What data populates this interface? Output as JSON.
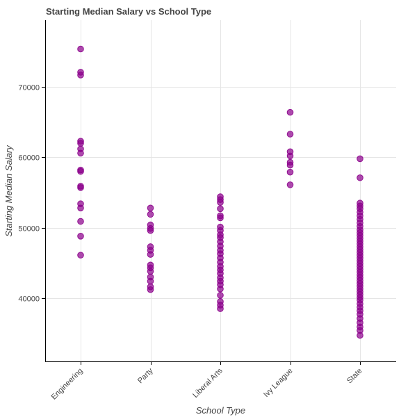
{
  "chart_data": {
    "type": "scatter",
    "title": "Starting Median Salary vs School Type",
    "xlabel": "School Type",
    "ylabel": "Starting Median Salary",
    "categories": [
      "Engineering",
      "Party",
      "Liberal Arts",
      "Ivy League",
      "State"
    ],
    "ylim": [
      31000,
      79500
    ],
    "yticks": [
      40000,
      50000,
      60000,
      70000
    ],
    "grid": true,
    "marker_color": "#8B008B",
    "series": [
      {
        "values": [
          [
            "Engineering",
            75400
          ],
          [
            "Engineering",
            72100
          ],
          [
            "Engineering",
            71700
          ],
          [
            "Engineering",
            62300
          ],
          [
            "Engineering",
            62000
          ],
          [
            "Engineering",
            61200
          ],
          [
            "Engineering",
            60600
          ],
          [
            "Engineering",
            58200
          ],
          [
            "Engineering",
            58000
          ],
          [
            "Engineering",
            55900
          ],
          [
            "Engineering",
            55700
          ],
          [
            "Engineering",
            53400
          ],
          [
            "Engineering",
            52800
          ],
          [
            "Engineering",
            50900
          ],
          [
            "Engineering",
            48800
          ],
          [
            "Engineering",
            46100
          ],
          [
            "Party",
            52800
          ],
          [
            "Party",
            51900
          ],
          [
            "Party",
            50400
          ],
          [
            "Party",
            49900
          ],
          [
            "Party",
            49600
          ],
          [
            "Party",
            47300
          ],
          [
            "Party",
            46800
          ],
          [
            "Party",
            46200
          ],
          [
            "Party",
            44700
          ],
          [
            "Party",
            44300
          ],
          [
            "Party",
            43800
          ],
          [
            "Party",
            43000
          ],
          [
            "Party",
            42400
          ],
          [
            "Party",
            41600
          ],
          [
            "Party",
            41200
          ],
          [
            "Liberal Arts",
            54400
          ],
          [
            "Liberal Arts",
            54000
          ],
          [
            "Liberal Arts",
            53600
          ],
          [
            "Liberal Arts",
            52700
          ],
          [
            "Liberal Arts",
            51700
          ],
          [
            "Liberal Arts",
            51400
          ],
          [
            "Liberal Arts",
            50100
          ],
          [
            "Liberal Arts",
            49600
          ],
          [
            "Liberal Arts",
            49000
          ],
          [
            "Liberal Arts",
            48600
          ],
          [
            "Liberal Arts",
            48000
          ],
          [
            "Liberal Arts",
            47400
          ],
          [
            "Liberal Arts",
            46800
          ],
          [
            "Liberal Arts",
            46300
          ],
          [
            "Liberal Arts",
            45700
          ],
          [
            "Liberal Arts",
            45100
          ],
          [
            "Liberal Arts",
            44500
          ],
          [
            "Liberal Arts",
            44000
          ],
          [
            "Liberal Arts",
            43500
          ],
          [
            "Liberal Arts",
            42900
          ],
          [
            "Liberal Arts",
            42400
          ],
          [
            "Liberal Arts",
            41900
          ],
          [
            "Liberal Arts",
            41300
          ],
          [
            "Liberal Arts",
            40400
          ],
          [
            "Liberal Arts",
            39500
          ],
          [
            "Liberal Arts",
            39000
          ],
          [
            "Liberal Arts",
            38500
          ],
          [
            "Ivy League",
            66400
          ],
          [
            "Ivy League",
            63300
          ],
          [
            "Ivy League",
            60800
          ],
          [
            "Ivy League",
            60200
          ],
          [
            "Ivy League",
            59300
          ],
          [
            "Ivy League",
            58900
          ],
          [
            "Ivy League",
            57900
          ],
          [
            "Ivy League",
            56100
          ],
          [
            "State",
            59800
          ],
          [
            "State",
            57100
          ],
          [
            "State",
            53500
          ],
          [
            "State",
            53100
          ],
          [
            "State",
            52700
          ],
          [
            "State",
            52200
          ],
          [
            "State",
            51700
          ],
          [
            "State",
            51200
          ],
          [
            "State",
            50700
          ],
          [
            "State",
            50200
          ],
          [
            "State",
            49700
          ],
          [
            "State",
            49300
          ],
          [
            "State",
            48900
          ],
          [
            "State",
            48500
          ],
          [
            "State",
            48100
          ],
          [
            "State",
            47700
          ],
          [
            "State",
            47300
          ],
          [
            "State",
            46900
          ],
          [
            "State",
            46500
          ],
          [
            "State",
            46100
          ],
          [
            "State",
            45700
          ],
          [
            "State",
            45300
          ],
          [
            "State",
            44900
          ],
          [
            "State",
            44500
          ],
          [
            "State",
            44100
          ],
          [
            "State",
            43700
          ],
          [
            "State",
            43300
          ],
          [
            "State",
            42900
          ],
          [
            "State",
            42500
          ],
          [
            "State",
            42100
          ],
          [
            "State",
            41700
          ],
          [
            "State",
            41300
          ],
          [
            "State",
            40900
          ],
          [
            "State",
            40500
          ],
          [
            "State",
            40100
          ],
          [
            "State",
            39700
          ],
          [
            "State",
            39200
          ],
          [
            "State",
            38700
          ],
          [
            "State",
            38200
          ],
          [
            "State",
            37700
          ],
          [
            "State",
            37100
          ],
          [
            "State",
            36500
          ],
          [
            "State",
            35900
          ],
          [
            "State",
            35400
          ],
          [
            "State",
            34700
          ]
        ]
      }
    ]
  }
}
